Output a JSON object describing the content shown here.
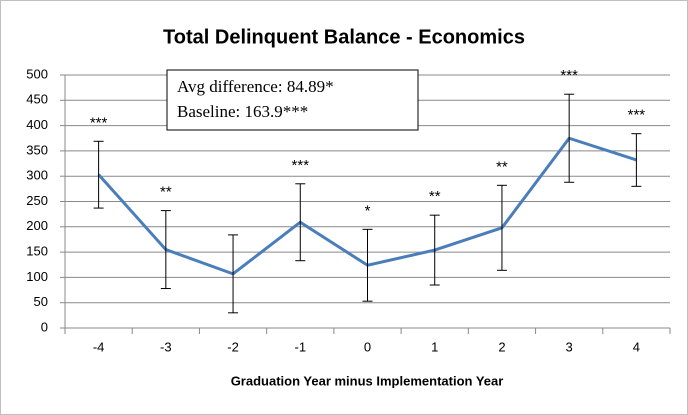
{
  "chart_data": {
    "type": "line",
    "title": "Total Delinquent Balance - Economics",
    "x_label": "Graduation Year minus Implementation Year",
    "categories": [
      "-4",
      "-3",
      "-2",
      "-1",
      "0",
      "1",
      "2",
      "3",
      "4"
    ],
    "series": [
      {
        "name": "Total Delinquent Balance",
        "color": "#4a7ebb",
        "values": [
          303,
          155,
          107,
          209,
          124,
          154,
          198,
          375,
          332
        ],
        "errors": [
          66,
          77,
          77,
          76,
          71,
          69,
          84,
          87,
          52
        ]
      }
    ],
    "significance": [
      "***",
      "**",
      null,
      "***",
      "*",
      "**",
      "**",
      "***",
      "***"
    ],
    "annotations": [
      "Avg difference:  84.89*",
      "Baseline:  163.9***"
    ],
    "ylim": [
      0,
      500
    ],
    "yticks": [
      0,
      50,
      100,
      150,
      200,
      250,
      300,
      350,
      400,
      450,
      500
    ],
    "grid": true
  }
}
